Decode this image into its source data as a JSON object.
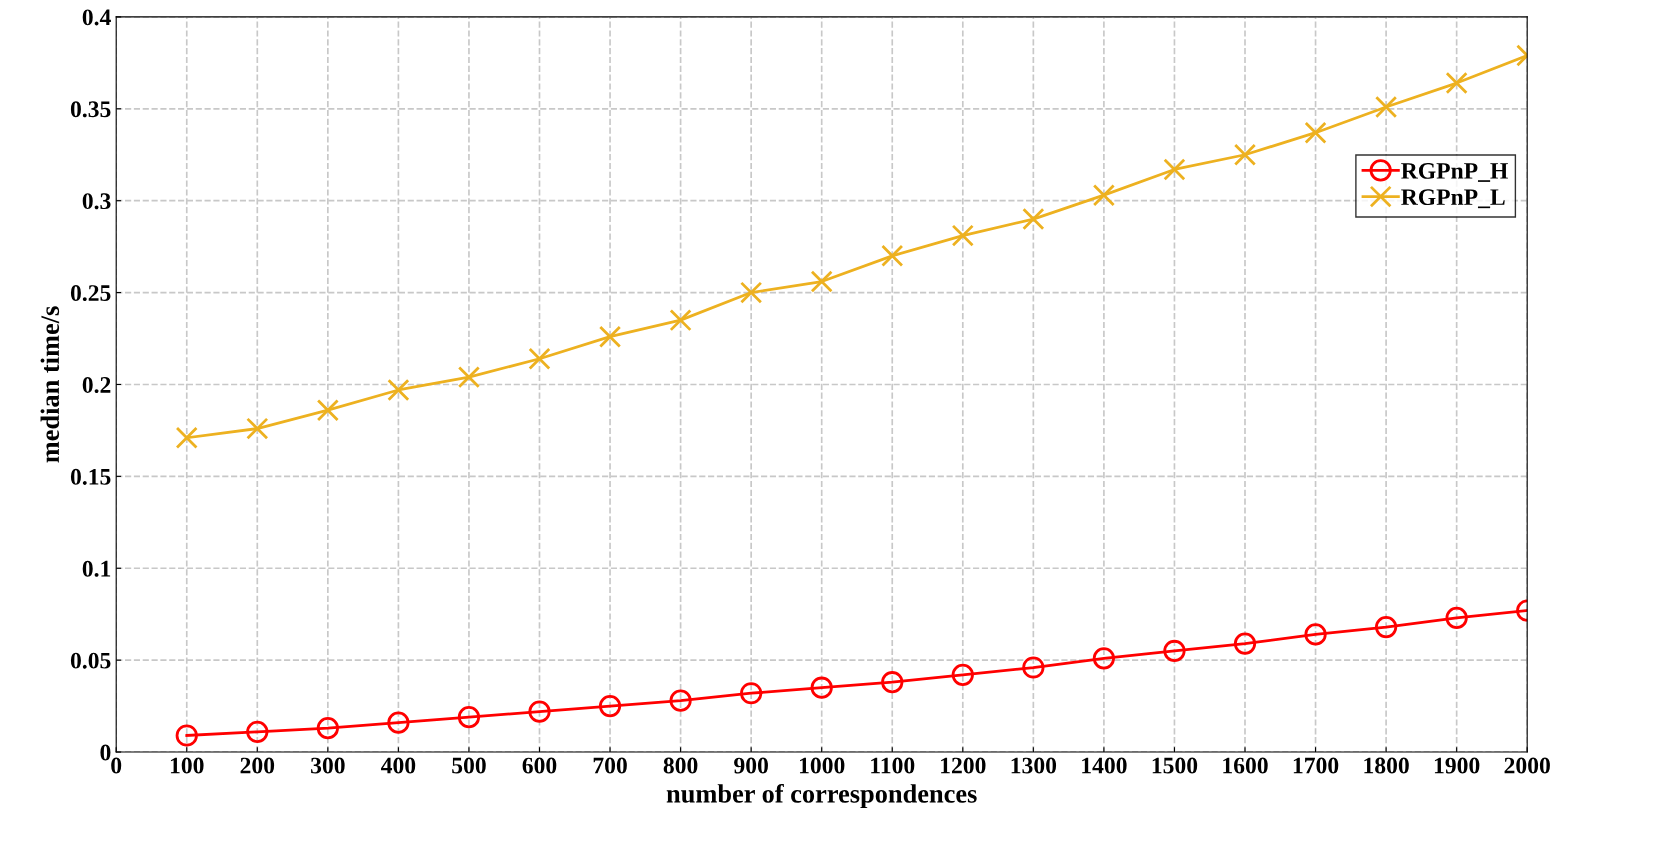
{
  "chart_data": {
    "type": "line",
    "xlabel": "number of correspondences",
    "ylabel": "median time/s",
    "x": [
      100,
      200,
      300,
      400,
      500,
      600,
      700,
      800,
      900,
      1000,
      1100,
      1200,
      1300,
      1400,
      1500,
      1600,
      1700,
      1800,
      1900,
      2000
    ],
    "series": [
      {
        "name": "RGPnP_H",
        "color": "#ff0000",
        "marker": "circle",
        "values": [
          0.009,
          0.011,
          0.013,
          0.016,
          0.019,
          0.022,
          0.025,
          0.028,
          0.032,
          0.035,
          0.038,
          0.042,
          0.046,
          0.051,
          0.055,
          0.059,
          0.064,
          0.068,
          0.073,
          0.077
        ]
      },
      {
        "name": "RGPnP_L",
        "color": "#edb120",
        "marker": "cross",
        "values": [
          0.171,
          0.176,
          0.186,
          0.197,
          0.204,
          0.214,
          0.226,
          0.235,
          0.25,
          0.256,
          0.27,
          0.281,
          0.29,
          0.303,
          0.317,
          0.325,
          0.337,
          0.351,
          0.364,
          0.379
        ]
      }
    ],
    "xlim": [
      0,
      2000
    ],
    "xticks": [
      0,
      100,
      200,
      300,
      400,
      500,
      600,
      700,
      800,
      900,
      1000,
      1100,
      1200,
      1300,
      1400,
      1500,
      1600,
      1700,
      1800,
      1900,
      2000
    ],
    "ylim": [
      0,
      0.4
    ],
    "yticks": [
      0,
      0.05,
      0.1,
      0.15,
      0.2,
      0.25,
      0.3,
      0.35,
      0.4
    ],
    "grid": true,
    "legend": "right",
    "line_style": "solid"
  }
}
